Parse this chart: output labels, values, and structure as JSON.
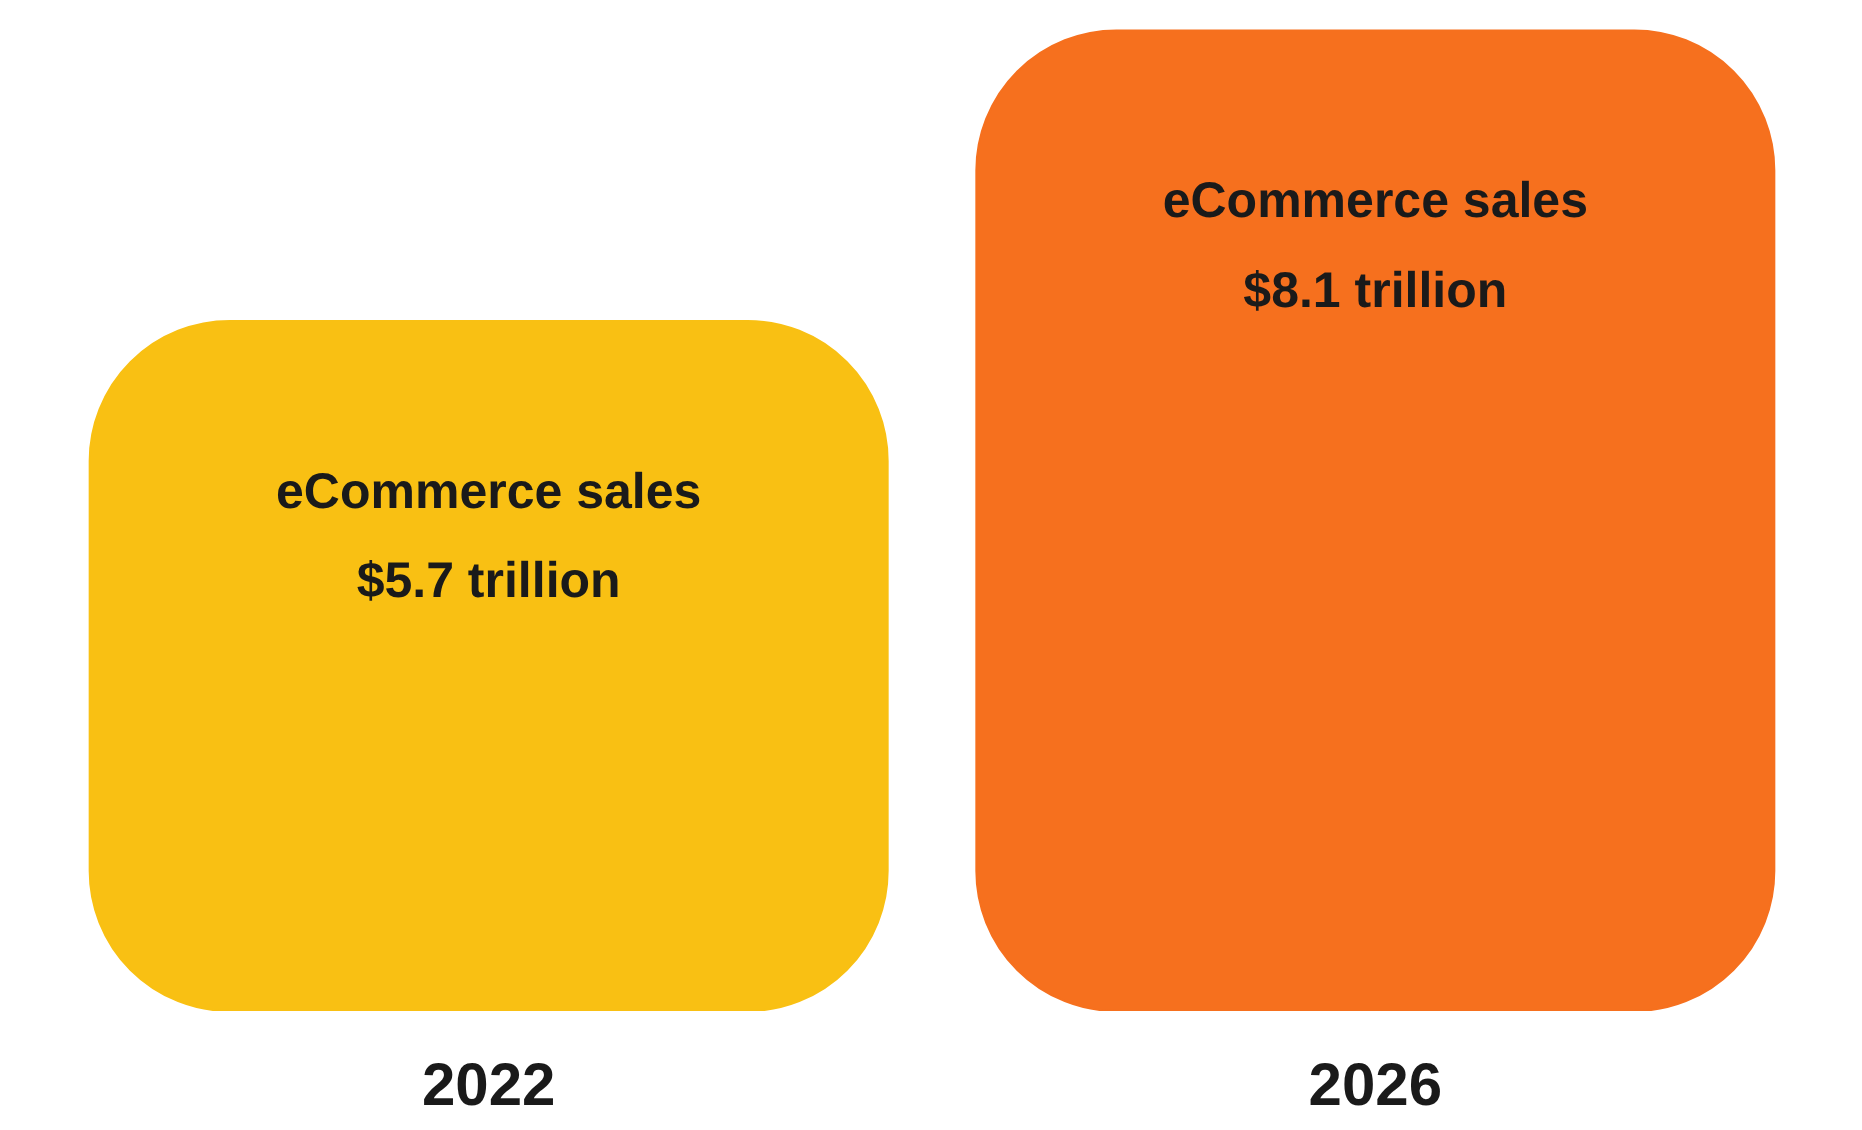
{
  "chart_data": {
    "type": "bar",
    "categories": [
      "2022",
      "2026"
    ],
    "values": [
      5.7,
      8.1
    ],
    "colors": [
      "#f9c013",
      "#f6701e"
    ],
    "value_labels": [
      "eCommerce sales\n$5.7 trillion",
      "eCommerce sales\n$8.1 trillion"
    ]
  }
}
